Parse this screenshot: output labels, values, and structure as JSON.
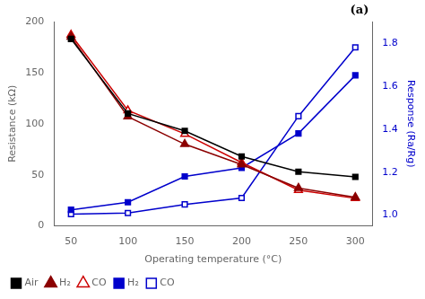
{
  "chart_data": {
    "type": "line",
    "x": [
      50,
      100,
      150,
      200,
      250,
      300
    ],
    "x_label": "Operating temperature (°C)",
    "y_label": "Resistance (kΩ)",
    "y2_label": "Response (Ra/Rg)",
    "xlim": [
      35,
      315
    ],
    "xticks": [
      50,
      100,
      150,
      200,
      250,
      300
    ],
    "ylim": [
      0,
      200
    ],
    "yticks": [
      0,
      50,
      100,
      150,
      200
    ],
    "y2lim": [
      0.95,
      1.9
    ],
    "y2ticks": [
      {
        "value": 1.0,
        "label": "1.0"
      },
      {
        "value": 1.2,
        "label": "1.2"
      },
      {
        "value": 1.4,
        "label": "1.4"
      },
      {
        "value": 1.6,
        "label": "1.6"
      },
      {
        "value": 1.8,
        "label": "1.8"
      }
    ],
    "y2_color": "#0000cc",
    "grid": false,
    "legend": "lower left",
    "annotations": [
      "(a)"
    ],
    "series": [
      {
        "name": "Air",
        "color": "#000000",
        "marker": "square",
        "line_style": "solid",
        "values": [
          183,
          110,
          93,
          68,
          53,
          48
        ]
      },
      {
        "name": "H₂",
        "color": "#8b0000",
        "marker": "triangle",
        "line_style": "solid",
        "values": [
          185,
          107,
          80,
          60,
          37,
          28
        ]
      },
      {
        "name": "CO",
        "color": "#cc0000",
        "marker": "triangle_open",
        "line_style": "solid",
        "values": [
          187,
          113,
          90,
          62,
          35,
          27
        ]
      },
      {
        "name": "H₂",
        "color": "#0000cc",
        "marker": "square",
        "line_style": "solid",
        "axis": "y2",
        "values": [
          1.025,
          1.06,
          1.18,
          1.22,
          1.38,
          1.65
        ]
      },
      {
        "name": "CO",
        "color": "#0000cc",
        "marker": "square_open",
        "line_style": "solid",
        "axis": "y2",
        "values": [
          1.005,
          1.01,
          1.05,
          1.08,
          1.46,
          1.78
        ]
      }
    ]
  }
}
